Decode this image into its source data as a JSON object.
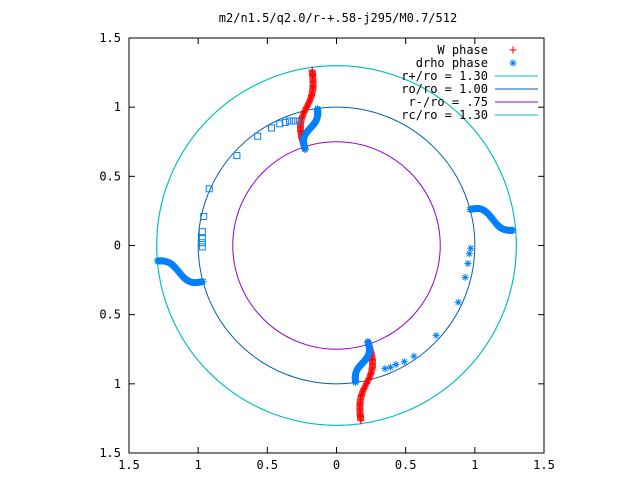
{
  "chart_data": {
    "type": "scatter",
    "title": "m2/n1.5/q2.0/r-+.58-j295/M0.7/512",
    "xlabel": "",
    "ylabel": "",
    "xlim": [
      -1.5,
      1.5
    ],
    "ylim": [
      -1.5,
      1.5
    ],
    "grid": false,
    "legend_position": "top-right",
    "x_tick_values": [
      -1.5,
      -1,
      -0.5,
      0,
      0.5,
      1,
      1.5
    ],
    "x_tick_labels": [
      "1.5",
      "1",
      "0.5",
      "0",
      "0.5",
      "1",
      "1.5"
    ],
    "y_tick_values": [
      1.5,
      1,
      0.5,
      0,
      -0.5,
      -1,
      -1.5
    ],
    "y_tick_labels": [
      "1.5",
      "1",
      "0.5",
      "0",
      "0.5",
      "1",
      "1.5"
    ],
    "circles": [
      {
        "name": "r+/ro = 1.30",
        "radius": 1.3,
        "color": "#00c0c0"
      },
      {
        "name": "ro/ro = 1.00",
        "radius": 1.0,
        "color": "#0060ad"
      },
      {
        "name": "r-/ro =  .75",
        "radius": 0.75,
        "color": "#9400d3"
      },
      {
        "name": "rc/ro = 1.30",
        "radius": 1.3,
        "color": "#00c0c0"
      }
    ],
    "series": [
      {
        "name": "W phase",
        "marker": "plus",
        "color": "#ff0000",
        "segments": [
          {
            "r0": 0.73,
            "r1": 1.28,
            "base_angle": 103,
            "dtheta": 0.09
          },
          {
            "r0": 0.73,
            "r1": 1.28,
            "base_angle": 283,
            "dtheta": 0.09
          }
        ]
      },
      {
        "name": "drho phase",
        "marker": "star",
        "color": "#0080ff",
        "segments": [
          {
            "r0": 0.73,
            "r1": 1.0,
            "base_angle": 103,
            "dtheta": 0.09
          },
          {
            "r0": 0.73,
            "r1": 1.0,
            "base_angle": 283,
            "dtheta": 0.09
          },
          {
            "r0": 1.0,
            "r1": 1.28,
            "base_angle": 10,
            "dtheta": 0.09
          },
          {
            "r0": 1.0,
            "r1": 1.3,
            "base_angle": 190,
            "dtheta": 0.09
          }
        ],
        "sparse_points": [
          {
            "x": 0.72,
            "y": -0.65
          },
          {
            "x": 0.56,
            "y": -0.8
          },
          {
            "x": 0.49,
            "y": -0.84
          },
          {
            "x": 0.43,
            "y": -0.86
          },
          {
            "x": 0.39,
            "y": -0.88
          },
          {
            "x": 0.35,
            "y": -0.89
          },
          {
            "x": 0.88,
            "y": -0.41
          },
          {
            "x": 0.93,
            "y": -0.23
          },
          {
            "x": 0.95,
            "y": -0.13
          },
          {
            "x": 0.96,
            "y": -0.06
          },
          {
            "x": 0.97,
            "y": -0.02
          }
        ]
      },
      {
        "name": "",
        "marker": "square",
        "color": "#0080ff",
        "points": [
          {
            "x": -0.92,
            "y": 0.41
          },
          {
            "x": -0.96,
            "y": 0.21
          },
          {
            "x": -0.97,
            "y": 0.1
          },
          {
            "x": -0.97,
            "y": 0.05
          },
          {
            "x": -0.97,
            "y": 0.02
          },
          {
            "x": -0.97,
            "y": -0.01
          },
          {
            "x": -0.72,
            "y": 0.65
          },
          {
            "x": -0.57,
            "y": 0.79
          },
          {
            "x": -0.47,
            "y": 0.85
          },
          {
            "x": -0.41,
            "y": 0.88
          },
          {
            "x": -0.37,
            "y": 0.89
          },
          {
            "x": -0.34,
            "y": 0.9
          },
          {
            "x": -0.31,
            "y": 0.9
          },
          {
            "x": -0.28,
            "y": 0.9
          }
        ]
      }
    ]
  }
}
